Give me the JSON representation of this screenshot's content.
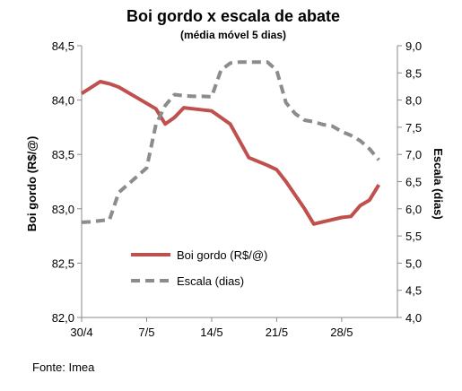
{
  "chart_data": {
    "type": "line",
    "title": "Boi gordo x escala de abate",
    "subtitle": "(média móvel 5 dias)",
    "source": "Fonte: Imea",
    "y_left": {
      "label": "Boi gordo (R$/@)",
      "range": [
        82.0,
        84.5
      ],
      "ticks": [
        "82,0",
        "82,5",
        "83,0",
        "83,5",
        "84,0",
        "84,5"
      ],
      "tick_values": [
        82.0,
        82.5,
        83.0,
        83.5,
        84.0,
        84.5
      ]
    },
    "y_right": {
      "label": "Escala (dias)",
      "range": [
        4.0,
        9.0
      ],
      "ticks": [
        "4,0",
        "4,5",
        "5,0",
        "5,5",
        "6,0",
        "6,5",
        "7,0",
        "7,5",
        "8,0",
        "8,5",
        "9,0"
      ],
      "tick_values": [
        4.0,
        4.5,
        5.0,
        5.5,
        6.0,
        6.5,
        7.0,
        7.5,
        8.0,
        8.5,
        9.0
      ]
    },
    "x_axis": {
      "range": [
        0,
        34
      ],
      "ticks": [
        "30/4",
        "7/5",
        "14/5",
        "21/5",
        "28/5"
      ],
      "tick_days": [
        0,
        7,
        14,
        21,
        28
      ]
    },
    "series": [
      {
        "name": "Boi gordo (R$/@)",
        "axis": "left",
        "color": "#c0504d",
        "style": "solid",
        "points": [
          [
            0,
            84.06
          ],
          [
            2,
            84.17
          ],
          [
            3,
            84.15
          ],
          [
            4,
            84.12
          ],
          [
            6,
            84.02
          ],
          [
            8,
            83.92
          ],
          [
            9,
            83.78
          ],
          [
            10,
            83.84
          ],
          [
            11,
            83.93
          ],
          [
            12,
            83.92
          ],
          [
            14,
            83.9
          ],
          [
            16,
            83.78
          ],
          [
            18,
            83.47
          ],
          [
            20,
            83.4
          ],
          [
            21,
            83.36
          ],
          [
            22,
            83.25
          ],
          [
            24,
            83.0
          ],
          [
            25,
            82.86
          ],
          [
            26,
            82.88
          ],
          [
            28,
            82.92
          ],
          [
            29,
            82.93
          ],
          [
            30,
            83.03
          ],
          [
            31,
            83.08
          ],
          [
            32,
            83.22
          ]
        ]
      },
      {
        "name": "Escala (dias)",
        "axis": "right",
        "color": "#8c8c8c",
        "style": "dashed",
        "points": [
          [
            0,
            5.75
          ],
          [
            1,
            5.76
          ],
          [
            2,
            5.78
          ],
          [
            3,
            5.8
          ],
          [
            4,
            6.3
          ],
          [
            5,
            6.45
          ],
          [
            6,
            6.6
          ],
          [
            7,
            6.75
          ],
          [
            8,
            7.55
          ],
          [
            9,
            7.9
          ],
          [
            10,
            8.1
          ],
          [
            11,
            8.08
          ],
          [
            12,
            8.07
          ],
          [
            13,
            8.07
          ],
          [
            14,
            8.06
          ],
          [
            15,
            8.55
          ],
          [
            16,
            8.68
          ],
          [
            17,
            8.7
          ],
          [
            18,
            8.7
          ],
          [
            19,
            8.7
          ],
          [
            20,
            8.7
          ],
          [
            21,
            8.55
          ],
          [
            22,
            7.95
          ],
          [
            23,
            7.75
          ],
          [
            24,
            7.63
          ],
          [
            25,
            7.6
          ],
          [
            26,
            7.55
          ],
          [
            27,
            7.52
          ],
          [
            28,
            7.42
          ],
          [
            29,
            7.35
          ],
          [
            30,
            7.25
          ],
          [
            31,
            7.1
          ],
          [
            32,
            6.9
          ]
        ]
      }
    ],
    "legend": {
      "placement": "inside-bottom-left"
    },
    "grid": false
  }
}
